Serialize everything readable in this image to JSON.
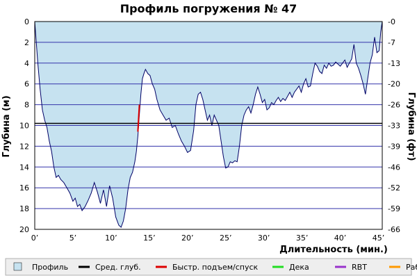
{
  "chart_data": {
    "type": "area",
    "title": "Профиль погружения № 47",
    "xlabel": "Длительность (мин.)",
    "ylabel_left": "Глубина (м)",
    "ylabel_right": "Глубина (фт)",
    "xlim": [
      0,
      45.5
    ],
    "ylim_m": [
      0,
      20
    ],
    "x_ticks": [
      0,
      5,
      10,
      15,
      20,
      25,
      30,
      35,
      40,
      45
    ],
    "x_tick_labels": [
      "0’",
      "5’",
      "10’",
      "15’",
      "20’",
      "25’",
      "30’",
      "35’",
      "40’",
      "45’"
    ],
    "y_ticks_m": [
      0,
      2,
      4,
      6,
      8,
      10,
      12,
      14,
      16,
      18,
      20
    ],
    "y_tick_labels_m": [
      "0",
      "2",
      "4",
      "6",
      "8",
      "10",
      "12",
      "14",
      "16",
      "18",
      "20"
    ],
    "y_ticks_ft": [
      0,
      7,
      13,
      20,
      26,
      33,
      39,
      46,
      52,
      59,
      66
    ],
    "avg_depth_m": 9.8,
    "profile": {
      "name": "Профиль",
      "x": [
        0,
        0.2,
        0.4,
        0.7,
        1.0,
        1.3,
        1.6,
        1.9,
        2.2,
        2.5,
        2.8,
        3.1,
        3.4,
        3.8,
        4.2,
        4.6,
        5.0,
        5.3,
        5.6,
        5.9,
        6.2,
        6.6,
        7.0,
        7.4,
        7.8,
        8.2,
        8.6,
        9.0,
        9.4,
        9.8,
        10.2,
        10.6,
        11.0,
        11.3,
        11.6,
        11.9,
        12.2,
        12.5,
        12.8,
        13.1,
        13.3,
        13.5,
        13.7,
        13.9,
        14.1,
        14.3,
        14.5,
        14.8,
        15.1,
        15.4,
        15.7,
        16.0,
        16.4,
        16.8,
        17.2,
        17.6,
        18.0,
        18.4,
        18.8,
        19.2,
        19.6,
        20.0,
        20.4,
        20.8,
        21.1,
        21.4,
        21.7,
        22.0,
        22.3,
        22.6,
        22.9,
        23.2,
        23.5,
        23.8,
        24.1,
        24.4,
        24.7,
        25.0,
        25.3,
        25.6,
        25.9,
        26.2,
        26.5,
        26.8,
        27.1,
        27.4,
        27.7,
        28.0,
        28.3,
        28.6,
        28.9,
        29.2,
        29.5,
        29.8,
        30.1,
        30.4,
        30.7,
        31.0,
        31.3,
        31.6,
        31.9,
        32.2,
        32.5,
        32.8,
        33.1,
        33.4,
        33.7,
        34.0,
        34.3,
        34.6,
        34.9,
        35.2,
        35.5,
        35.8,
        36.1,
        36.4,
        36.7,
        37.0,
        37.3,
        37.6,
        37.9,
        38.2,
        38.5,
        38.8,
        39.1,
        39.4,
        39.7,
        40.0,
        40.3,
        40.6,
        40.9,
        41.2,
        41.5,
        41.8,
        42.1,
        42.4,
        42.7,
        43.0,
        43.3,
        43.6,
        43.9,
        44.2,
        44.5,
        44.8,
        45.1,
        45.3,
        45.5
      ],
      "y": [
        0,
        2.0,
        4.0,
        6.5,
        8.5,
        9.5,
        10.2,
        11.5,
        12.5,
        14.0,
        15.0,
        14.8,
        15.2,
        15.5,
        16.0,
        16.5,
        17.3,
        17.0,
        17.8,
        17.6,
        18.2,
        17.8,
        17.2,
        16.5,
        15.5,
        16.4,
        17.5,
        16.2,
        17.8,
        15.8,
        17.0,
        18.8,
        19.6,
        19.8,
        19.2,
        18.0,
        16.2,
        15.0,
        14.5,
        13.5,
        12.5,
        11.0,
        9.0,
        7.0,
        5.5,
        5.0,
        4.6,
        5.0,
        5.2,
        6.0,
        6.5,
        7.5,
        8.5,
        9.0,
        9.5,
        9.3,
        10.2,
        10.0,
        10.8,
        11.5,
        12.0,
        12.6,
        12.4,
        10.5,
        8.0,
        7.0,
        6.8,
        7.5,
        8.5,
        9.5,
        9.0,
        10.0,
        9.0,
        9.5,
        10.0,
        11.5,
        13.0,
        14.1,
        14.0,
        13.5,
        13.6,
        13.4,
        13.5,
        12.0,
        10.0,
        9.0,
        8.5,
        8.2,
        8.8,
        8.0,
        7.0,
        6.3,
        7.0,
        7.8,
        7.5,
        8.5,
        8.3,
        7.8,
        8.0,
        7.6,
        7.3,
        7.7,
        7.4,
        7.6,
        7.2,
        6.8,
        7.3,
        6.8,
        6.5,
        6.2,
        6.8,
        6.0,
        5.5,
        6.3,
        6.2,
        5.0,
        4.0,
        4.3,
        4.8,
        5.0,
        4.2,
        4.5,
        4.0,
        4.3,
        4.2,
        3.9,
        4.1,
        4.3,
        4.0,
        3.7,
        4.4,
        4.0,
        3.6,
        2.2,
        4.0,
        4.5,
        5.2,
        6.0,
        7.0,
        5.5,
        4.0,
        3.2,
        1.5,
        3.0,
        2.8,
        1.0,
        0
      ],
      "fill": "#c6e2f0",
      "stroke": "#000066"
    },
    "fast_segment": {
      "name": "Быстр. подъем/спуск",
      "x": [
        13.5,
        13.7
      ],
      "y": [
        10.6,
        8.0
      ],
      "color": "#dd0000"
    },
    "legend": [
      {
        "label": "Профиль",
        "color": "#c6e2f0",
        "kind": "box"
      },
      {
        "label": "Сред. глуб.",
        "color": "#000000",
        "kind": "line"
      },
      {
        "label": "Быстр. подъем/спуск",
        "color": "#dd0000",
        "kind": "line"
      },
      {
        "label": "Дека",
        "color": "#22dd22",
        "kind": "line"
      },
      {
        "label": "RBT",
        "color": "#9933cc",
        "kind": "line"
      },
      {
        "label": "Раб.",
        "color": "#ff9900",
        "kind": "line"
      }
    ],
    "legend_position": "bottom",
    "grid": true,
    "grid_color": "#3333aa",
    "legend_bg": "#eeeeee"
  }
}
